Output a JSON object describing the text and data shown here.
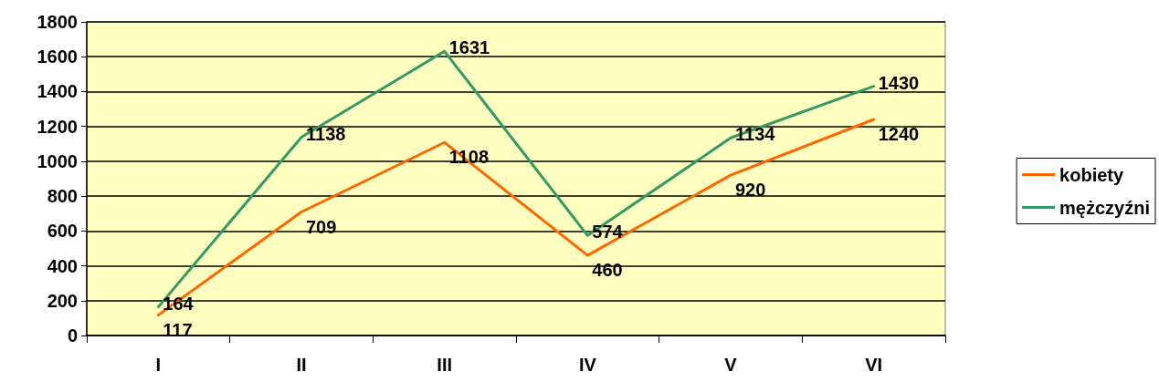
{
  "chart_data": {
    "type": "line",
    "categories": [
      "I",
      "II",
      "III",
      "IV",
      "V",
      "VI"
    ],
    "series": [
      {
        "name": "kobiety",
        "color": "#ff6600",
        "values": [
          117,
          709,
          1108,
          460,
          920,
          1240
        ]
      },
      {
        "name": "mężczyźni",
        "color": "#339966",
        "values": [
          164,
          1138,
          1631,
          574,
          1134,
          1430
        ]
      }
    ],
    "ylim": [
      0,
      1800
    ],
    "yticks": [
      0,
      200,
      400,
      600,
      800,
      1000,
      1200,
      1400,
      1600,
      1800
    ],
    "grid": "y",
    "legend": "right",
    "marker": "none",
    "line_style": "solid",
    "data_labels": true
  }
}
